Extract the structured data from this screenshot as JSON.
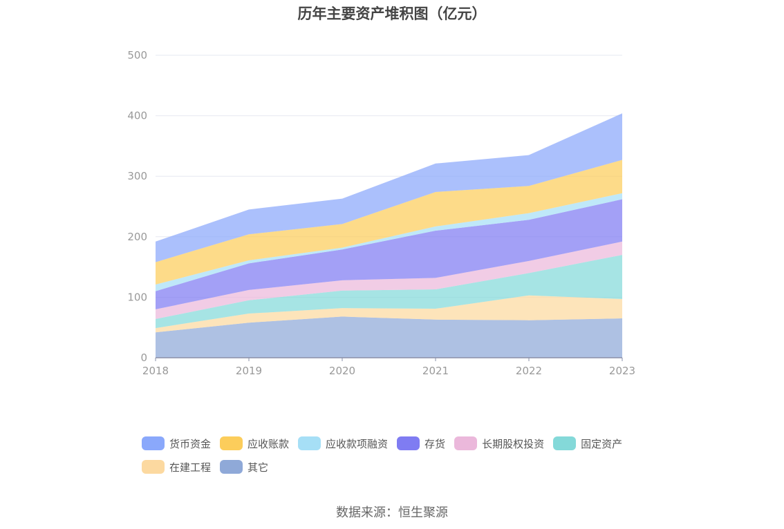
{
  "chart_data": {
    "type": "area",
    "stacked": true,
    "title": "历年主要资产堆积图（亿元）",
    "source": "数据来源：恒生聚源",
    "categories": [
      "2018",
      "2019",
      "2020",
      "2021",
      "2022",
      "2023"
    ],
    "ylim": [
      0,
      500
    ],
    "yticks": [
      "0",
      "100",
      "200",
      "300",
      "400",
      "500"
    ],
    "grid": true,
    "legend_position": "bottom",
    "series": [
      {
        "name": "其它",
        "color": "#8fa9d8",
        "values": [
          42,
          58,
          68,
          63,
          62,
          65
        ]
      },
      {
        "name": "在建工程",
        "color": "#fcd9a0",
        "values": [
          7,
          15,
          14,
          18,
          41,
          32
        ]
      },
      {
        "name": "固定资产",
        "color": "#84d9d9",
        "values": [
          15,
          22,
          29,
          32,
          37,
          73
        ]
      },
      {
        "name": "长期股权投资",
        "color": "#ebb8db",
        "values": [
          16,
          17,
          17,
          19,
          20,
          22
        ]
      },
      {
        "name": "存货",
        "color": "#7f7cf2",
        "values": [
          30,
          44,
          51,
          78,
          68,
          70
        ]
      },
      {
        "name": "应收款项融资",
        "color": "#a6dff6",
        "values": [
          11,
          5,
          3,
          7,
          11,
          10
        ]
      },
      {
        "name": "应收账款",
        "color": "#fccd5b",
        "values": [
          37,
          43,
          39,
          57,
          45,
          55
        ]
      },
      {
        "name": "货币资金",
        "color": "#8aa8fb",
        "values": [
          34,
          41,
          42,
          47,
          51,
          77
        ]
      }
    ],
    "legend_order": [
      "货币资金",
      "应收账款",
      "应收款项融资",
      "存货",
      "长期股权投资",
      "固定资产",
      "在建工程",
      "其它"
    ]
  }
}
